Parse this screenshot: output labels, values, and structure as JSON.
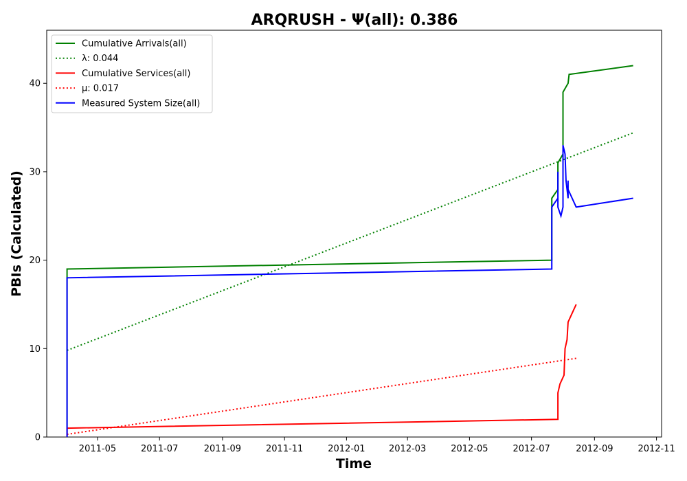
{
  "chart_data": {
    "type": "line",
    "title": "ARQRUSH -  Ψ(all): 0.386",
    "xlabel": "Time",
    "ylabel": "PBIs (Calculated)",
    "xlim": [
      "2011-03-12",
      "2012-11-06"
    ],
    "ylim": [
      0,
      46
    ],
    "x_ticks": [
      "2011-05",
      "2011-07",
      "2011-09",
      "2011-11",
      "2012-01",
      "2012-03",
      "2012-05",
      "2012-07",
      "2012-09",
      "2012-11"
    ],
    "y_ticks": [
      0,
      10,
      20,
      30,
      40
    ],
    "grid": false,
    "legend_position": "upper-left",
    "series": [
      {
        "name": "Cumulative Arrivals(all)",
        "color": "#008000",
        "style": "solid",
        "points": [
          [
            "2011-04-01",
            0
          ],
          [
            "2011-04-01",
            19
          ],
          [
            "2012-07-21",
            20
          ],
          [
            "2012-07-21",
            27
          ],
          [
            "2012-07-27",
            28
          ],
          [
            "2012-07-27",
            31
          ],
          [
            "2012-08-01",
            32
          ],
          [
            "2012-08-01",
            39
          ],
          [
            "2012-08-06",
            40
          ],
          [
            "2012-08-07",
            41
          ],
          [
            "2012-10-09",
            42
          ]
        ]
      },
      {
        "name": "λ: 0.044",
        "color": "#008000",
        "style": "dotted",
        "points": [
          [
            "2011-04-01",
            9.8
          ],
          [
            "2012-10-09",
            34.4
          ]
        ]
      },
      {
        "name": "Cumulative Services(all)",
        "color": "#ff0000",
        "style": "solid",
        "points": [
          [
            "2011-04-01",
            0
          ],
          [
            "2011-04-01",
            1
          ],
          [
            "2012-07-27",
            2
          ],
          [
            "2012-07-27",
            5
          ],
          [
            "2012-07-29",
            6
          ],
          [
            "2012-08-02",
            7
          ],
          [
            "2012-08-03",
            10
          ],
          [
            "2012-08-05",
            11
          ],
          [
            "2012-08-06",
            13
          ],
          [
            "2012-08-10",
            14
          ],
          [
            "2012-08-14",
            15
          ]
        ]
      },
      {
        "name": "μ: 0.017",
        "color": "#ff0000",
        "style": "dotted",
        "points": [
          [
            "2011-04-01",
            0.3
          ],
          [
            "2012-08-14",
            8.9
          ]
        ]
      },
      {
        "name": "Measured System Size(all)",
        "color": "#0000ff",
        "style": "solid",
        "points": [
          [
            "2011-04-01",
            0
          ],
          [
            "2011-04-01",
            18
          ],
          [
            "2012-07-21",
            19
          ],
          [
            "2012-07-21",
            26
          ],
          [
            "2012-07-27",
            27
          ],
          [
            "2012-07-27",
            30
          ],
          [
            "2012-07-27",
            26
          ],
          [
            "2012-07-30",
            25
          ],
          [
            "2012-08-01",
            26
          ],
          [
            "2012-08-01",
            33
          ],
          [
            "2012-08-03",
            32
          ],
          [
            "2012-08-04",
            29
          ],
          [
            "2012-08-06",
            27
          ],
          [
            "2012-08-06",
            29
          ],
          [
            "2012-08-06",
            28
          ],
          [
            "2012-08-10",
            27
          ],
          [
            "2012-08-14",
            26
          ],
          [
            "2012-10-09",
            27
          ]
        ]
      }
    ]
  }
}
